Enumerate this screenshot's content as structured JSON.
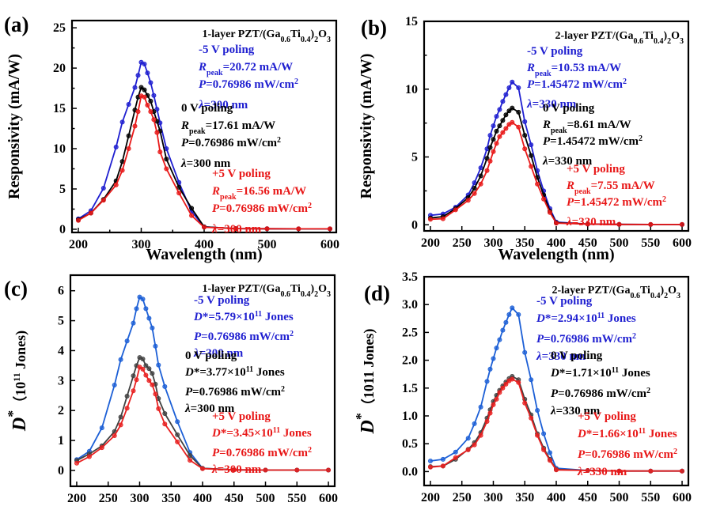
{
  "figure": {
    "shared_xlabel": "Wavelength (nm)"
  },
  "chart_data": [
    {
      "id": "a",
      "panel_label": "(a)",
      "type": "line",
      "title": "1-layer PZT/(Ga0.6Ti0.4)2O3",
      "title_parts": {
        "prefix": "1-layer PZT/(Ga",
        "sub1": "0.6",
        "mid": "Ti",
        "sub2": "0.4",
        "close": ")",
        "sub3": "2",
        "tail": "O",
        "sub4": "3"
      },
      "xlabel": "Wavelength (nm)",
      "ylabel": "Responsivity (mA/W)",
      "xlim": [
        190,
        610
      ],
      "ylim": [
        -0.4,
        25.9
      ],
      "xticks": [
        200,
        300,
        400,
        500,
        600
      ],
      "xticks_minor": [
        250,
        350,
        450,
        550
      ],
      "yticks": [
        0,
        5,
        10,
        15,
        20,
        25
      ],
      "yticks_minor": [
        2.5,
        7.5,
        12.5,
        17.5,
        22.5
      ],
      "grid": false,
      "x": [
        200,
        220,
        240,
        260,
        270,
        280,
        290,
        295,
        300,
        305,
        310,
        315,
        320,
        325,
        330,
        340,
        360,
        380,
        400,
        450,
        500,
        550,
        600
      ],
      "series": [
        {
          "name": "-5 V poling",
          "color": "#1f1fd0",
          "values": [
            1.3,
            2.3,
            5.1,
            10.2,
            13.3,
            15.5,
            17.6,
            19.1,
            20.72,
            20.5,
            19.4,
            18.2,
            16.6,
            14.9,
            13.2,
            10.0,
            5.8,
            2.2,
            0.3,
            0.08,
            0.06,
            0.05,
            0.05
          ]
        },
        {
          "name": "0 V poling",
          "color": "#000000",
          "values": [
            1.2,
            2.0,
            3.7,
            6.0,
            8.4,
            11.6,
            14.8,
            16.4,
            17.61,
            17.3,
            16.6,
            15.9,
            14.6,
            13.4,
            12.2,
            8.7,
            5.2,
            2.6,
            0.3,
            0.08,
            0.06,
            0.05,
            0.05
          ]
        },
        {
          "name": "+5 V poling",
          "color": "#e81818",
          "values": [
            1.1,
            2.0,
            3.6,
            5.5,
            7.3,
            10.0,
            12.8,
            14.6,
            16.56,
            16.4,
            15.4,
            14.6,
            13.6,
            12.0,
            9.6,
            7.5,
            4.5,
            1.7,
            0.25,
            0.08,
            0.06,
            0.05,
            0.05
          ]
        }
      ],
      "annotations": [
        {
          "color": "#1f1fd0",
          "lines": [
            {
              "text": "-5 V poling"
            },
            {
              "R": "R",
              "sub": "peak",
              "text": "=20.72 mA/W"
            },
            {
              "P": "P",
              "text": "=0.76986 mW/cm",
              "sup": "2"
            },
            {
              "L": "λ",
              "text": "=300 nm"
            }
          ]
        },
        {
          "color": "#000000",
          "lines": [
            {
              "text": "0 V poling"
            },
            {
              "R": "R",
              "sub": "peak",
              "text": "=17.61 mA/W"
            },
            {
              "P": "P",
              "text": "=0.76986 mW/cm",
              "sup": "2"
            },
            {
              "L": "λ",
              "text": "=300 nm"
            }
          ]
        },
        {
          "color": "#e81818",
          "lines": [
            {
              "text": "+5 V poling"
            },
            {
              "R": "R",
              "sub": "peak",
              "text": "=16.56 mA/W"
            },
            {
              "P": "P",
              "text": "=0.76986 mW/cm",
              "sup": "2"
            },
            {
              "L": "λ",
              "text": "=300 nm"
            }
          ]
        }
      ]
    },
    {
      "id": "b",
      "panel_label": "(b)",
      "type": "line",
      "title": "2-layer PZT/(Ga0.6Ti0.4)2O3",
      "title_parts": {
        "prefix": "2-layer PZT/(Ga",
        "sub1": "0.6",
        "mid": "Ti",
        "sub2": "0.4",
        "close": ")",
        "sub3": "2",
        "tail": "O",
        "sub4": "3"
      },
      "xlabel": "Wavelength (nm)",
      "ylabel": "Responsivity (mA/W)",
      "xlim": [
        190,
        610
      ],
      "ylim": [
        -0.45,
        15.0
      ],
      "xticks": [
        200,
        250,
        300,
        350,
        400,
        450,
        500,
        550,
        600
      ],
      "xticks_minor": [],
      "yticks": [
        0,
        5,
        10,
        15
      ],
      "yticks_minor": [
        2.5,
        7.5,
        12.5
      ],
      "grid": false,
      "x": [
        200,
        220,
        240,
        260,
        270,
        280,
        290,
        295,
        300,
        305,
        310,
        315,
        320,
        325,
        330,
        340,
        350,
        360,
        370,
        380,
        390,
        400,
        450,
        500,
        550,
        600
      ],
      "series": [
        {
          "name": "-5 V poling",
          "color": "#1f1fd0",
          "values": [
            0.7,
            0.8,
            1.3,
            2.2,
            3.1,
            4.2,
            5.6,
            6.6,
            7.3,
            8.0,
            8.5,
            9.1,
            9.6,
            10.1,
            10.53,
            10.1,
            7.6,
            5.9,
            4.0,
            2.5,
            1.2,
            0.2,
            0.05,
            0.03,
            0.02,
            0.02
          ]
        },
        {
          "name": "0 V poling",
          "color": "#000000",
          "values": [
            0.5,
            0.6,
            1.2,
            2.0,
            2.7,
            3.6,
            4.9,
            5.7,
            6.3,
            6.9,
            7.3,
            7.7,
            8.1,
            8.4,
            8.61,
            8.3,
            6.6,
            5.1,
            3.5,
            2.2,
            1.0,
            0.15,
            0.05,
            0.03,
            0.02,
            0.02
          ]
        },
        {
          "name": "+5 V poling",
          "color": "#e81818",
          "values": [
            0.4,
            0.45,
            1.1,
            1.8,
            2.3,
            3.0,
            4.0,
            4.7,
            5.4,
            6.0,
            6.5,
            6.8,
            7.1,
            7.4,
            7.55,
            7.2,
            5.6,
            4.3,
            3.0,
            1.9,
            0.9,
            0.12,
            0.05,
            0.03,
            0.02,
            0.02
          ]
        }
      ],
      "annotations": [
        {
          "color": "#1f1fd0",
          "lines": [
            {
              "text": "-5 V poling"
            },
            {
              "R": "R",
              "sub": "peak",
              "text": "=10.53 mA/W"
            },
            {
              "P": "P",
              "text": "=1.45472 mW/cm",
              "sup": "2"
            },
            {
              "L": "λ",
              "text": "=330 nm"
            }
          ]
        },
        {
          "color": "#000000",
          "lines": [
            {
              "text": "0 V poling"
            },
            {
              "R": "R",
              "sub": "peak",
              "text": "=8.61 mA/W"
            },
            {
              "P": "P",
              "text": "=1.45472 mW/cm",
              "sup": "2"
            },
            {
              "L": "λ",
              "text": "=330 nm"
            }
          ]
        },
        {
          "color": "#e81818",
          "lines": [
            {
              "text": "+5 V poling"
            },
            {
              "R": "R",
              "sub": "peak",
              "text": "=7.55 mA/W"
            },
            {
              "P": "P",
              "text": "=1.45472 mW/cm",
              "sup": "2"
            },
            {
              "L": "λ",
              "text": "=330 nm"
            }
          ]
        }
      ]
    },
    {
      "id": "c",
      "panel_label": "(c)",
      "type": "line",
      "title": "1-layer PZT/(Ga0.6Ti0.4)2O3",
      "title_parts": {
        "prefix": "1-layer PZT/(Ga",
        "sub1": "0.6",
        "mid": "Ti",
        "sub2": "0.4",
        "close": ")",
        "sub3": "2",
        "tail": "O",
        "sub4": "3"
      },
      "xlabel": "",
      "ylabel": "D* (10^11 Jones)",
      "ylabel_parts": {
        "main": "D",
        "sup": "*",
        "rest": "（10",
        "sup2": "11",
        "tail": " Jones)"
      },
      "xlim": [
        190,
        610
      ],
      "ylim": [
        -0.53,
        6.52
      ],
      "xticks": [
        200,
        250,
        300,
        350,
        400,
        450,
        500,
        550,
        600
      ],
      "xticks_minor": [],
      "yticks": [
        0,
        1,
        2,
        3,
        4,
        5,
        6
      ],
      "yticks_minor": [],
      "grid": false,
      "x": [
        200,
        220,
        240,
        260,
        270,
        280,
        290,
        295,
        300,
        305,
        310,
        315,
        320,
        325,
        330,
        340,
        360,
        380,
        400,
        450,
        500,
        550,
        600
      ],
      "series": [
        {
          "name": "-5 V poling",
          "color": "#1c5fd6",
          "values": [
            0.36,
            0.64,
            1.42,
            2.85,
            3.7,
            4.32,
            4.92,
            5.4,
            5.79,
            5.72,
            5.4,
            5.08,
            4.76,
            4.15,
            3.52,
            2.8,
            1.63,
            0.6,
            0.07,
            0.02,
            0.01,
            0.01,
            0.01
          ]
        },
        {
          "name": "0 V poling",
          "color": "#404040",
          "values": [
            0.33,
            0.55,
            0.82,
            1.3,
            1.78,
            2.48,
            3.16,
            3.5,
            3.77,
            3.72,
            3.5,
            3.4,
            3.24,
            2.88,
            2.4,
            1.9,
            1.19,
            0.5,
            0.07,
            0.02,
            0.01,
            0.01,
            0.01
          ]
        },
        {
          "name": "+5 V poling",
          "color": "#e82020",
          "values": [
            0.24,
            0.46,
            0.76,
            1.16,
            1.52,
            2.08,
            2.66,
            3.03,
            3.45,
            3.38,
            3.18,
            3.0,
            2.86,
            2.55,
            2.06,
            1.55,
            0.95,
            0.34,
            0.06,
            0.02,
            0.01,
            0.01,
            0.01
          ]
        }
      ],
      "annotations": [
        {
          "color": "#1f1fd0",
          "lines": [
            {
              "text": "-5 V poling"
            },
            {
              "D": "D",
              "text": "*=5.79×10",
              "sup": "11",
              "tail": " Jones"
            },
            {
              "P": "P",
              "text": "=0.76986 mW/cm",
              "sup": "2"
            },
            {
              "L": "λ",
              "text": "=300 nm"
            }
          ]
        },
        {
          "color": "#000000",
          "lines": [
            {
              "text": "0 V poling"
            },
            {
              "D": "D",
              "text": "*=3.77×10",
              "sup": "11",
              "tail": " Jones"
            },
            {
              "P": "P",
              "text": "=0.76986 mW/cm",
              "sup": "2"
            },
            {
              "L": "λ",
              "text": "=300 nm"
            }
          ]
        },
        {
          "color": "#e81818",
          "lines": [
            {
              "text": "+5 V poling"
            },
            {
              "D": "D",
              "text": "*=3.45×10",
              "sup": "11",
              "tail": " Jones"
            },
            {
              "P": "P",
              "text": "=0.76986 mW/cm",
              "sup": "2"
            },
            {
              "L": "λ",
              "text": "=300 nm"
            }
          ]
        }
      ]
    },
    {
      "id": "d",
      "panel_label": "(d)",
      "type": "line",
      "title": "2-layer PZT/(Ga0.6Ti0.4)2O3",
      "title_parts": {
        "prefix": "2-layer PZT/(Ga",
        "sub1": "0.6",
        "mid": "Ti",
        "sub2": "0.4",
        "close": ")",
        "sub3": "2",
        "tail": "O",
        "sub4": "3"
      },
      "xlabel": "",
      "ylabel": "D* (1011 Jones)",
      "ylabel_parts": {
        "main": "D",
        "sup": "*",
        "rest": "（1011 Jones)"
      },
      "xlim": [
        190,
        610
      ],
      "ylim": [
        -0.25,
        3.5
      ],
      "xticks": [
        200,
        250,
        300,
        350,
        400,
        450,
        500,
        550,
        600
      ],
      "xticks_minor": [],
      "yticks": [
        0.0,
        0.5,
        1.0,
        1.5,
        2.0,
        2.5,
        3.0,
        3.5
      ],
      "ytick_labels": [
        "0.0",
        "0.5",
        "1.0",
        "1.5",
        "2.0",
        "2.5",
        "3.0",
        "3.5"
      ],
      "yticks_minor": [],
      "grid": false,
      "x": [
        200,
        220,
        240,
        260,
        270,
        280,
        290,
        295,
        300,
        305,
        310,
        315,
        320,
        325,
        330,
        340,
        350,
        360,
        370,
        380,
        390,
        400,
        450,
        500,
        550,
        600
      ],
      "series": [
        {
          "name": "-5 V poling",
          "color": "#1c5fd6",
          "values": [
            0.19,
            0.22,
            0.35,
            0.6,
            0.86,
            1.16,
            1.62,
            1.84,
            2.03,
            2.22,
            2.37,
            2.54,
            2.68,
            2.82,
            2.94,
            2.82,
            2.14,
            1.65,
            1.1,
            0.68,
            0.34,
            0.06,
            0.02,
            0.01,
            0.01,
            0.01
          ]
        },
        {
          "name": "0 V poling",
          "color": "#404040",
          "values": [
            0.09,
            0.1,
            0.22,
            0.4,
            0.52,
            0.7,
            0.96,
            1.11,
            1.26,
            1.37,
            1.46,
            1.54,
            1.61,
            1.67,
            1.71,
            1.65,
            1.3,
            1.02,
            0.68,
            0.42,
            0.22,
            0.04,
            0.02,
            0.01,
            0.01,
            0.01
          ]
        },
        {
          "name": "+5 V poling",
          "color": "#e82020",
          "values": [
            0.08,
            0.1,
            0.25,
            0.39,
            0.48,
            0.65,
            0.9,
            1.05,
            1.2,
            1.3,
            1.42,
            1.5,
            1.57,
            1.63,
            1.66,
            1.6,
            1.23,
            0.96,
            0.65,
            0.39,
            0.2,
            0.03,
            0.02,
            0.01,
            0.01,
            0.01
          ]
        }
      ],
      "annotations": [
        {
          "color": "#1f1fd0",
          "lines": [
            {
              "text": "-5 V poling"
            },
            {
              "D": "D",
              "text": "*=2.94×10",
              "sup": "11",
              "tail": " Jones"
            },
            {
              "P": "P",
              "text": "=0.76986 mW/cm",
              "sup": "2"
            },
            {
              "L": "λ",
              "text": "=330 nm"
            }
          ]
        },
        {
          "color": "#000000",
          "lines": [
            {
              "text": "0 V poling"
            },
            {
              "D": "D",
              "text": "*=1.71×10",
              "sup": "11",
              "tail": " Jones"
            },
            {
              "P": "P",
              "text": "=0.76986 mW/cm",
              "sup": "2"
            },
            {
              "L": "λ",
              "text": "=330 nm"
            }
          ]
        },
        {
          "color": "#e81818",
          "lines": [
            {
              "text": "+5 V poling"
            },
            {
              "D": "D",
              "text": "*=1.66×10",
              "sup": "11",
              "tail": " Jones"
            },
            {
              "P": "P",
              "text": "=0.76986 mW/cm",
              "sup": "2"
            },
            {
              "L": "λ",
              "text": "=330 nm"
            }
          ]
        }
      ]
    }
  ]
}
